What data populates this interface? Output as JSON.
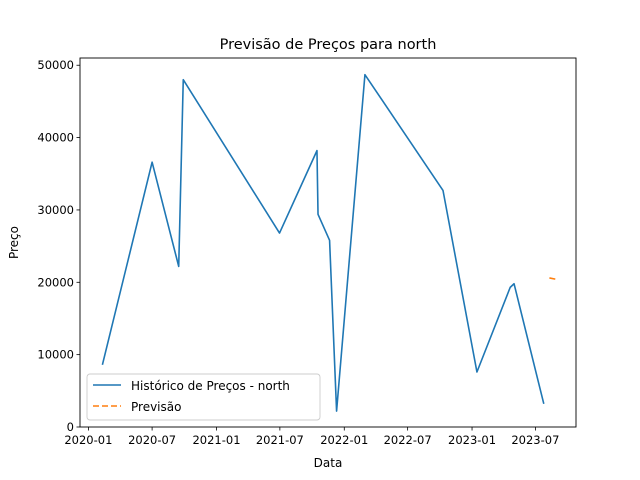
{
  "chart_data": {
    "type": "line",
    "title": "Previsão de Preços para north",
    "xlabel": "Data",
    "ylabel": "Preço",
    "xlim": [
      "2019-12-08",
      "2023-10-25"
    ],
    "ylim": [
      0,
      51000
    ],
    "x_ticks": [
      "2020-01",
      "2020-07",
      "2021-01",
      "2021-07",
      "2022-01",
      "2022-07",
      "2023-01",
      "2023-07"
    ],
    "y_ticks": [
      0,
      10000,
      20000,
      30000,
      40000,
      50000
    ],
    "legend_position": "lower-left",
    "grid": false,
    "series": [
      {
        "name": "Histórico de Preços - north",
        "color": "#1f77b4",
        "style": "solid",
        "points": [
          [
            "2020-02-10",
            8600
          ],
          [
            "2020-07-01",
            36600
          ],
          [
            "2020-09-15",
            22200
          ],
          [
            "2020-09-28",
            48000
          ],
          [
            "2021-06-30",
            26800
          ],
          [
            "2021-10-15",
            38200
          ],
          [
            "2021-10-18",
            29400
          ],
          [
            "2021-11-20",
            25800
          ],
          [
            "2021-12-10",
            2200
          ],
          [
            "2022-03-01",
            48700
          ],
          [
            "2022-10-10",
            32700
          ],
          [
            "2023-01-15",
            7600
          ],
          [
            "2023-04-20",
            19300
          ],
          [
            "2023-05-01",
            19800
          ],
          [
            "2023-07-25",
            3200
          ]
        ]
      },
      {
        "name": "Previsão",
        "color": "#ff7f0e",
        "style": "dashed",
        "points": [
          [
            "2023-08-10",
            20600
          ],
          [
            "2023-08-31",
            20400
          ]
        ]
      }
    ]
  }
}
